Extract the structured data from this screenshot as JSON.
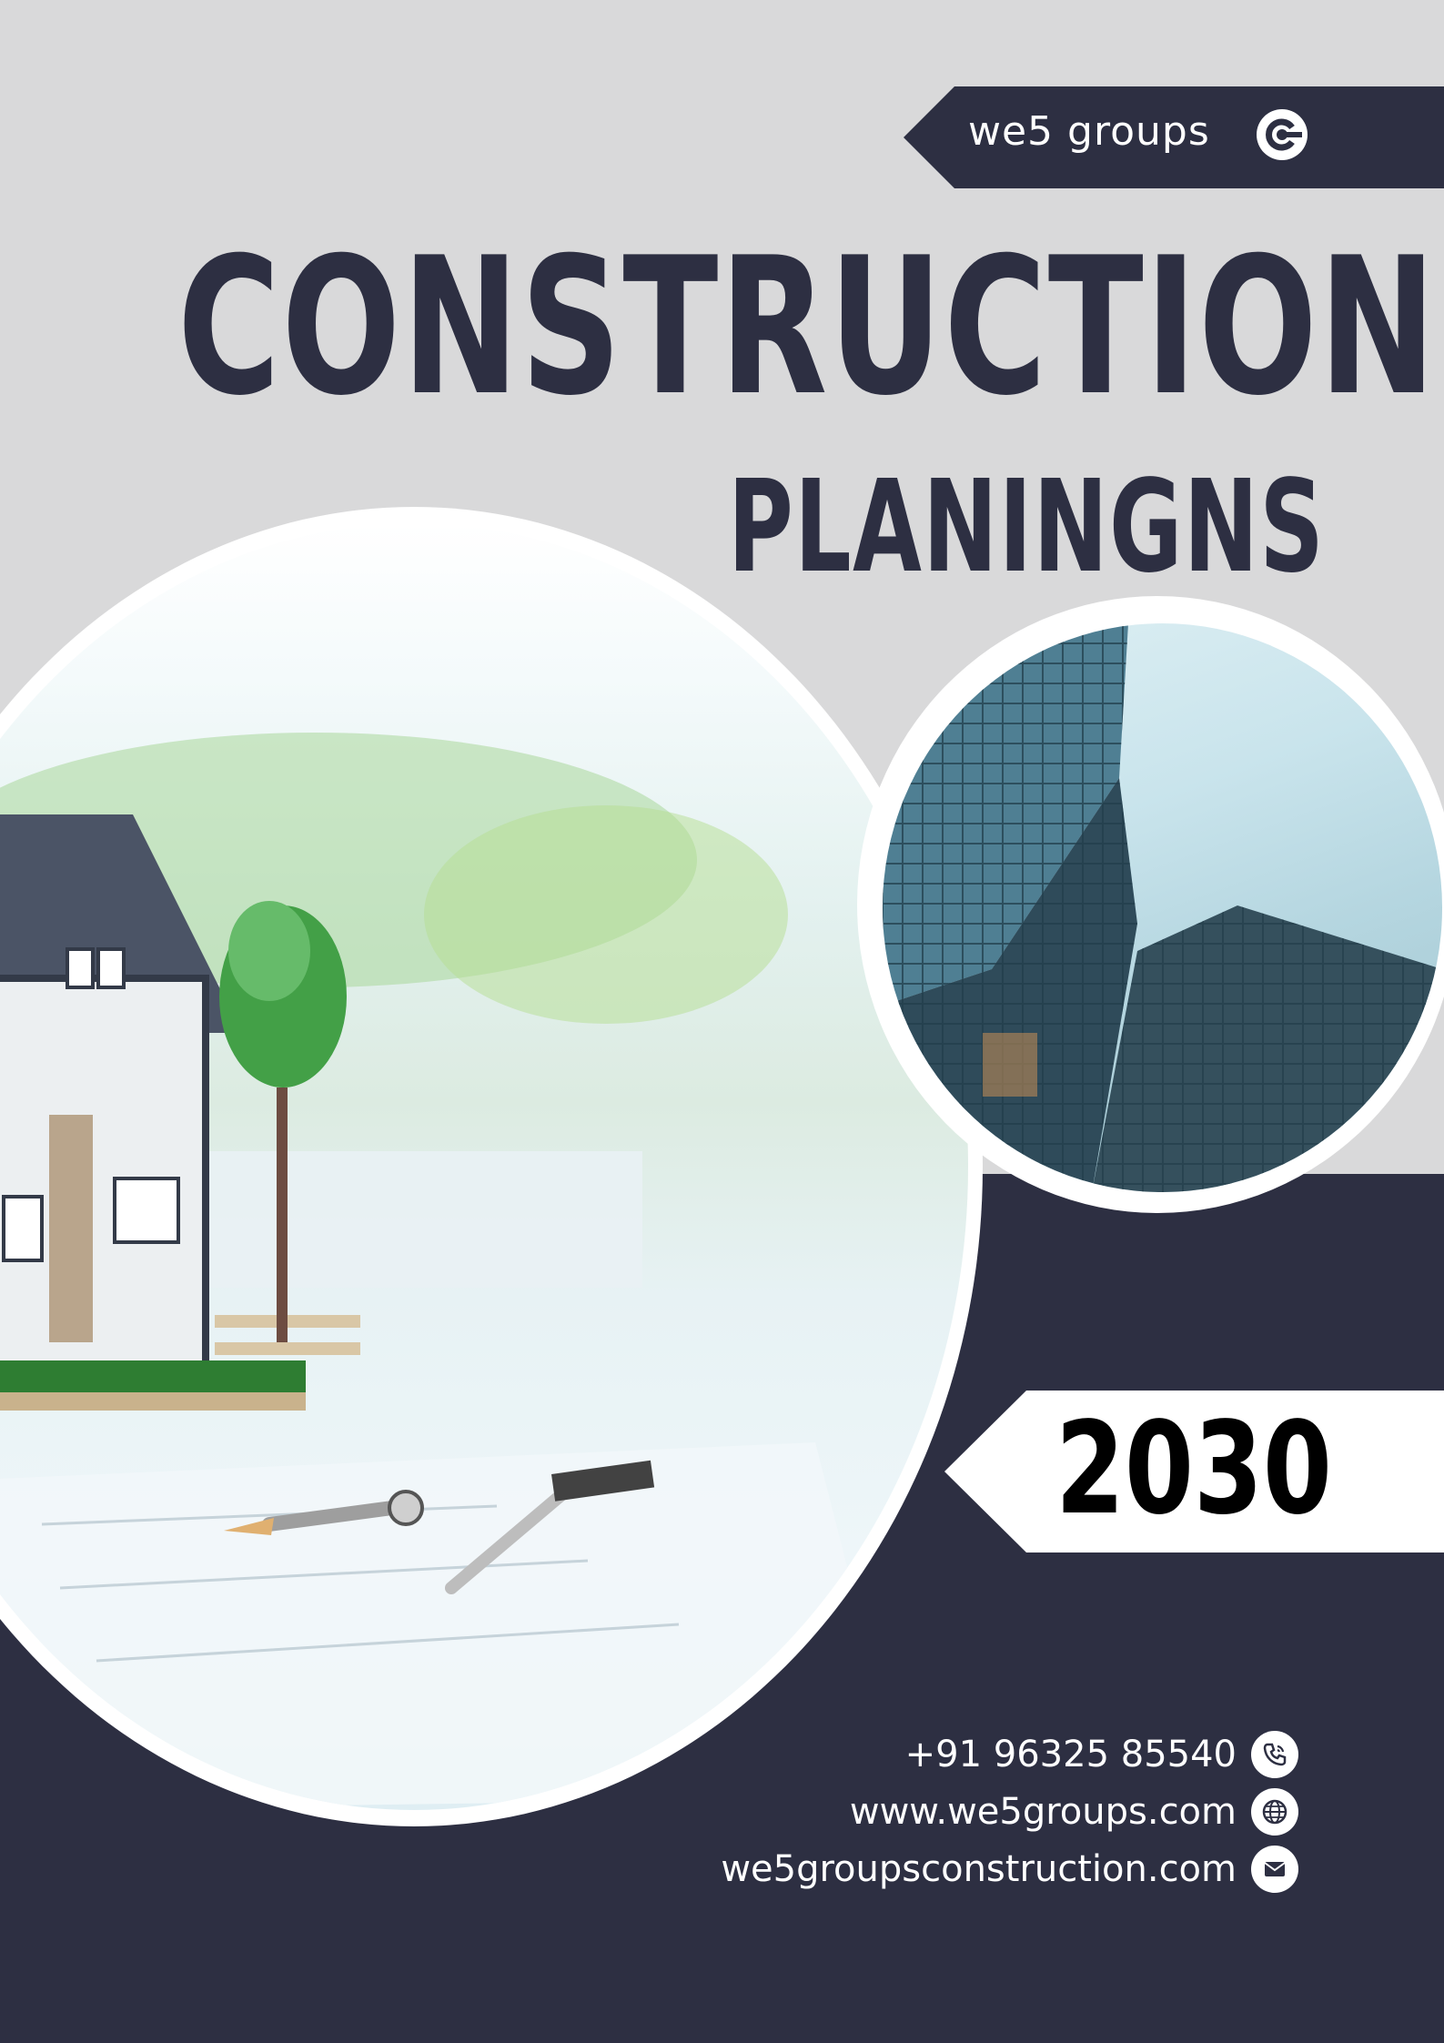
{
  "brand": {
    "name": "we5 groups",
    "logo_icon": "c-logo-icon"
  },
  "title": {
    "main": "CONSTRUCTION",
    "sub": "PLANINGNS"
  },
  "year": "2030",
  "contacts": [
    {
      "text": "+91 96325 85540",
      "icon": "phone-icon"
    },
    {
      "text": "www.we5groups.com",
      "icon": "globe-icon"
    },
    {
      "text": "we5groupsconstruction.com",
      "icon": "mail-icon"
    }
  ],
  "colors": {
    "navy": "#2d2f42",
    "light_gray": "#d9d9da",
    "white": "#ffffff",
    "black": "#000000"
  }
}
